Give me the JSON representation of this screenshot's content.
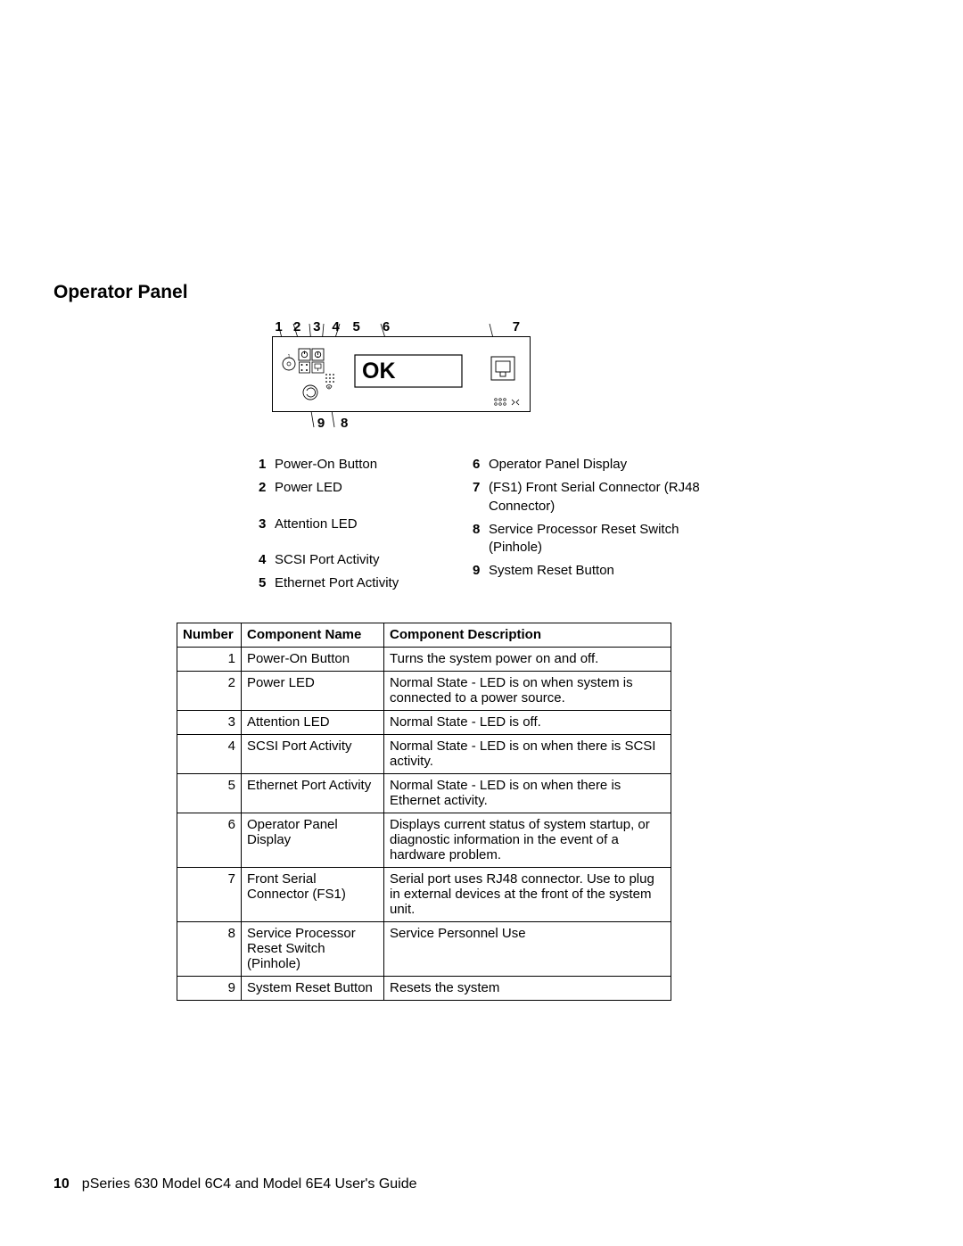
{
  "title": "Operator Panel",
  "diagram": {
    "top_callouts": [
      "1",
      "2",
      "3",
      "4",
      "5",
      "6",
      "7"
    ],
    "bottom_callouts": [
      "9",
      "8"
    ],
    "display_text": "OK"
  },
  "legend_left": [
    {
      "n": "1",
      "t": "Power-On Button"
    },
    {
      "n": "2",
      "t": "Power LED"
    },
    {
      "n": "3",
      "t": "Attention LED"
    },
    {
      "n": "4",
      "t": "SCSI Port Activity"
    },
    {
      "n": "5",
      "t": "Ethernet Port Activity"
    }
  ],
  "legend_right": [
    {
      "n": "6",
      "t": "Operator Panel Display"
    },
    {
      "n": "7",
      "t": "(FS1) Front Serial Connector (RJ48 Connector)"
    },
    {
      "n": "8",
      "t": "Service Processor Reset Switch (Pinhole)"
    },
    {
      "n": "9",
      "t": "System Reset Button"
    }
  ],
  "table": {
    "headers": [
      "Number",
      "Component Name",
      "Component Description"
    ],
    "rows": [
      {
        "num": "1",
        "name": "Power-On Button",
        "desc": "Turns the system power on and off."
      },
      {
        "num": "2",
        "name": "Power LED",
        "desc": "Normal State - LED is on when system is connected to a power source."
      },
      {
        "num": "3",
        "name": "Attention LED",
        "desc": "Normal State - LED is off."
      },
      {
        "num": "4",
        "name": "SCSI Port Activity",
        "desc": "Normal State - LED is on when there is SCSI activity."
      },
      {
        "num": "5",
        "name": "Ethernet Port Activity",
        "desc": "Normal State - LED is on when there is Ethernet activity."
      },
      {
        "num": "6",
        "name": "Operator Panel Display",
        "desc": "Displays current status of system startup, or diagnostic information in the event of a hardware problem."
      },
      {
        "num": "7",
        "name": "Front Serial Connector (FS1)",
        "desc": "Serial port uses RJ48 connector. Use to plug in external devices at the front of the system unit."
      },
      {
        "num": "8",
        "name": "Service Processor Reset Switch (Pinhole)",
        "desc": "Service Personnel Use"
      },
      {
        "num": "9",
        "name": "System Reset Button",
        "desc": "Resets the system"
      }
    ]
  },
  "footer": {
    "page": "10",
    "text": "pSeries 630 Model 6C4 and Model 6E4 User's Guide"
  }
}
